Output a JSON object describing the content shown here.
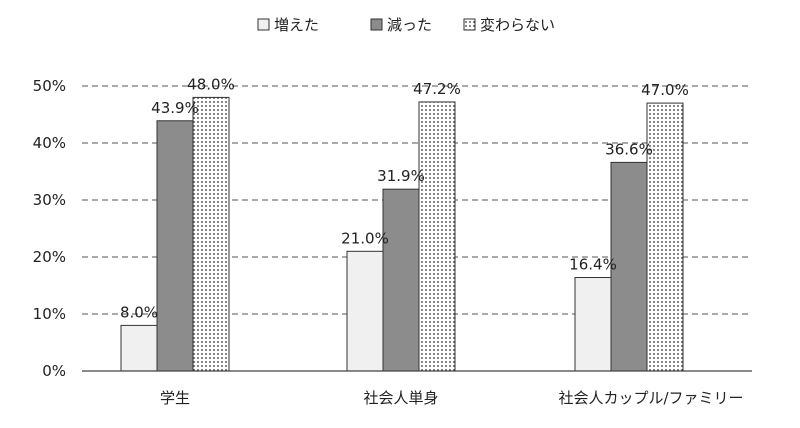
{
  "chart_data": {
    "type": "bar",
    "categories": [
      "学生",
      "社会人単身",
      "社会人カップル/ファミリー"
    ],
    "series": [
      {
        "name": "増えた",
        "values": [
          8.0,
          21.0,
          16.4
        ],
        "fill": "#f0f0f0",
        "pattern": "solid"
      },
      {
        "name": "減った",
        "values": [
          43.9,
          31.9,
          36.6
        ],
        "fill": "#8c8c8c",
        "pattern": "solid"
      },
      {
        "name": "変わらない",
        "values": [
          48.0,
          47.2,
          47.0
        ],
        "fill": "#ffffff",
        "pattern": "dots"
      }
    ],
    "value_labels": [
      [
        "8.0%",
        "21.0%",
        "16.4%"
      ],
      [
        "43.9%",
        "31.9%",
        "36.6%"
      ],
      [
        "48.0%",
        "47.2%",
        "47.0%"
      ]
    ],
    "yticks": [
      "0%",
      "10%",
      "20%",
      "30%",
      "40%",
      "50%"
    ],
    "ylim": [
      0,
      50
    ],
    "grid": true,
    "legend_position": "top-center",
    "colors": {
      "axis": "#444444",
      "grid": "#555555",
      "bar_outline": "#333333",
      "dots": "#333333"
    }
  }
}
